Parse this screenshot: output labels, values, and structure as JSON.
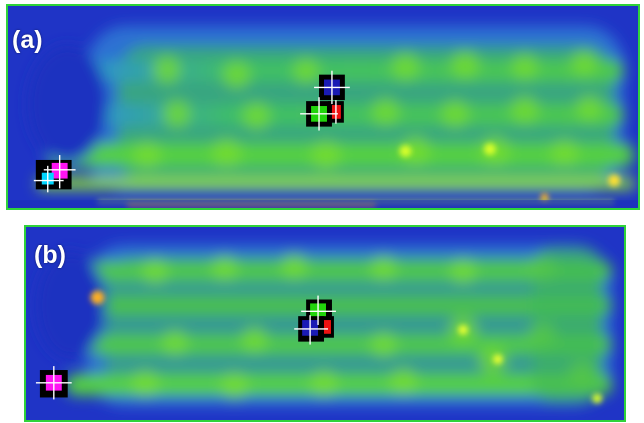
{
  "panels": [
    {
      "label": "(a)",
      "markers": [
        {
          "color": "#1a1ab4"
        },
        {
          "color": "#22d40c"
        },
        {
          "color": "#ee1111"
        },
        {
          "color": "#ff14f2"
        },
        {
          "color": "#00d6ff"
        }
      ]
    },
    {
      "label": "(b)",
      "markers": [
        {
          "color": "#22d40c"
        },
        {
          "color": "#1a1ab4"
        },
        {
          "color": "#ee1111"
        },
        {
          "color": "#ff14f2"
        }
      ]
    }
  ],
  "colors": {
    "frame": "#2fd33a",
    "heatmap_low": "#1e2fc8",
    "heatmap_mid": "#34c83e",
    "heatmap_high": "#c8ff20",
    "hotspot": "#ffb020"
  }
}
